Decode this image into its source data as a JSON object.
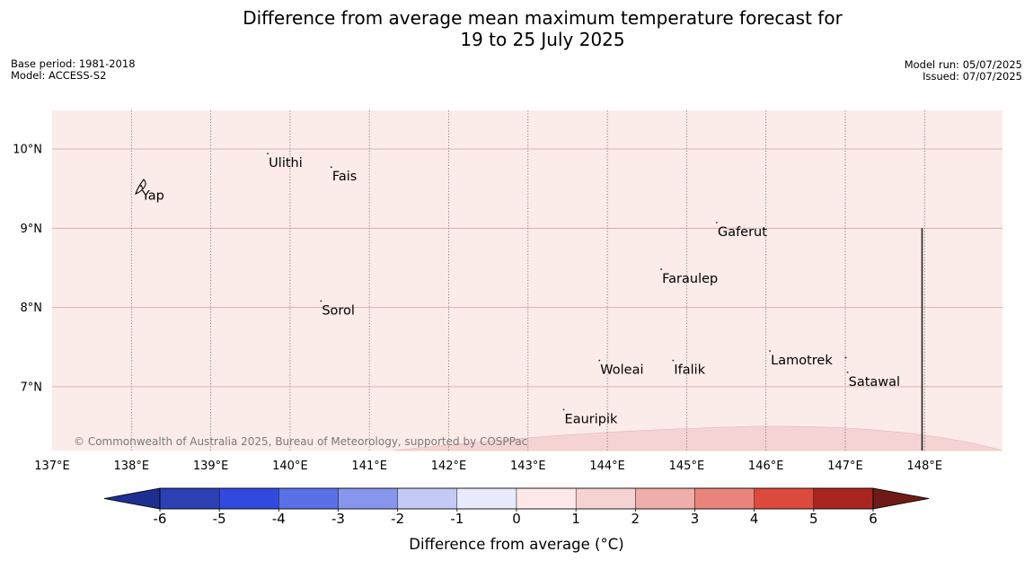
{
  "title_line1": "Difference from average mean maximum temperature forecast for",
  "title_line2": "19 to 25 July 2025",
  "meta_left": {
    "base_period": "Base period: 1981-2018",
    "model": "Model: ACCESS-S2"
  },
  "meta_right": {
    "model_run": "Model run: 05/07/2025",
    "issued": "Issued: 07/07/2025"
  },
  "copyright": "© Commonwealth of Australia 2025, Bureau of Meteorology, supported by COSPPac",
  "map": {
    "lon_range": [
      137,
      149
    ],
    "lat_range": [
      6.2,
      10.5
    ],
    "lon_ticks": [
      "137°E",
      "138°E",
      "139°E",
      "140°E",
      "141°E",
      "142°E",
      "143°E",
      "144°E",
      "145°E",
      "146°E",
      "147°E",
      "148°E"
    ],
    "lat_ticks": [
      "10°N",
      "9°N",
      "8°N",
      "7°N"
    ],
    "background_color": "#fbebe9",
    "band_color": "#f5d3d2",
    "places": [
      {
        "name": "Yap",
        "lon": 138.12,
        "lat": 9.52
      },
      {
        "name": "Ulithi",
        "lon": 139.72,
        "lat": 9.93
      },
      {
        "name": "Fais",
        "lon": 140.52,
        "lat": 9.76
      },
      {
        "name": "Gaferut",
        "lon": 145.38,
        "lat": 9.06
      },
      {
        "name": "Faraulep",
        "lon": 144.68,
        "lat": 8.47
      },
      {
        "name": "Sorol",
        "lon": 140.39,
        "lat": 8.07
      },
      {
        "name": "Woleai",
        "lon": 143.9,
        "lat": 7.32
      },
      {
        "name": "Ifalik",
        "lon": 144.83,
        "lat": 7.32
      },
      {
        "name": "Lamotrek",
        "lon": 146.05,
        "lat": 7.44
      },
      {
        "name": "Satawal",
        "lon": 147.03,
        "lat": 7.17
      },
      {
        "name": "Eauripik",
        "lon": 143.45,
        "lat": 6.7
      }
    ]
  },
  "colorbar": {
    "label": "Difference from average (°C)",
    "ticks": [
      "-6",
      "-5",
      "-4",
      "-3",
      "-2",
      "-1",
      "0",
      "1",
      "2",
      "3",
      "4",
      "5",
      "6"
    ],
    "colors": [
      "#1e2f91",
      "#2c3fb3",
      "#3249e0",
      "#5a70e6",
      "#8796ec",
      "#c4caf6",
      "#e8ebfc",
      "#fde9e9",
      "#f5d3d2",
      "#efaea9",
      "#e8847c",
      "#db4a3c",
      "#a8261f",
      "#6e1b17"
    ]
  }
}
